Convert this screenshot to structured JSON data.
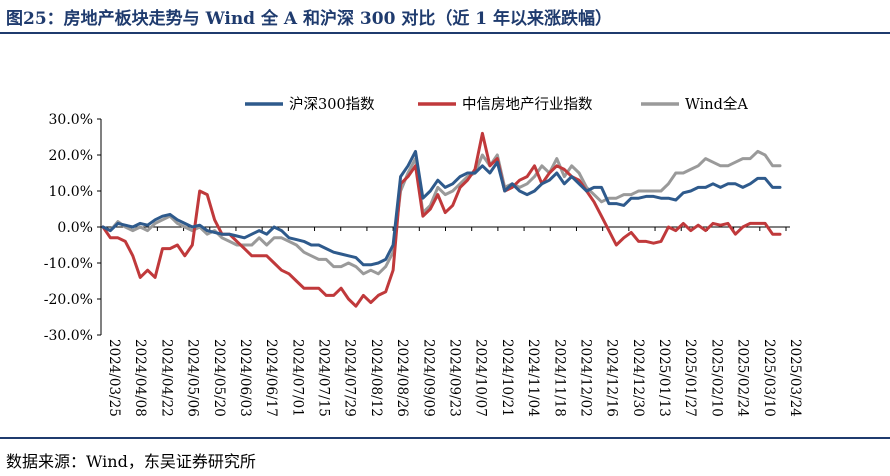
{
  "figure": {
    "title": "图25：房地产板块走势与 Wind 全 A 和沪深 300 对比（近 1 年以来涨跌幅）",
    "source": "数据来源：Wind，东吴证券研究所"
  },
  "chart_data": {
    "type": "line",
    "title": "",
    "xlabel": "",
    "ylabel": "",
    "ylim": [
      -30,
      30
    ],
    "yticks": [
      -30,
      -20,
      -10,
      0,
      10,
      20,
      30
    ],
    "ytick_labels": [
      "-30.0%",
      "-20.0%",
      "-10.0%",
      "0.0%",
      "10.0%",
      "20.0%",
      "30.0%"
    ],
    "x_tick_labels": [
      "2024/03/25",
      "2024/04/08",
      "2024/04/22",
      "2024/05/06",
      "2024/05/20",
      "2024/06/03",
      "2024/06/17",
      "2024/07/01",
      "2024/07/15",
      "2024/07/29",
      "2024/08/12",
      "2024/08/26",
      "2024/09/09",
      "2024/09/23",
      "2024/10/07",
      "2024/10/21",
      "2024/11/04",
      "2024/11/18",
      "2024/12/02",
      "2024/12/16",
      "2024/12/30",
      "2025/01/13",
      "2025/01/27",
      "2025/02/10",
      "2025/02/24",
      "2025/03/10",
      "2025/03/24"
    ],
    "legend_position": "top-center",
    "grid": false,
    "series": [
      {
        "name": "沪深300指数",
        "color": "#2e5a8c",
        "values": [
          0,
          -1,
          1,
          0.5,
          0,
          1,
          0.5,
          2,
          3,
          3.5,
          2,
          1,
          0,
          0.5,
          -1,
          -1.5,
          -2,
          -2,
          -2.5,
          -3,
          -2,
          -1,
          -2,
          0,
          -1,
          -3,
          -3.5,
          -4,
          -5,
          -5,
          -6,
          -7,
          -7.5,
          -8,
          -8.5,
          -10.5,
          -10.5,
          -10,
          -9,
          -5,
          14,
          17,
          21,
          8,
          10,
          13,
          11,
          12,
          14,
          15,
          15,
          17,
          15,
          18,
          10,
          12,
          10,
          9,
          10,
          12,
          13,
          15,
          12,
          14,
          12,
          10,
          11,
          11,
          6.5,
          6.5,
          6,
          8,
          8,
          8.5,
          8.5,
          8,
          8,
          7.5,
          9.5,
          10,
          11,
          11,
          12,
          11,
          12,
          12,
          11,
          12,
          13.5,
          13.5,
          11,
          11
        ]
      },
      {
        "name": "中信房地产行业指数",
        "color": "#c0393b",
        "values": [
          0,
          -3,
          -3,
          -4,
          -8,
          -14,
          -12,
          -14,
          -6,
          -6,
          -5,
          -8,
          -5,
          10,
          9,
          2,
          -2,
          -2,
          -4,
          -6,
          -8,
          -8,
          -8,
          -10,
          -12,
          -13,
          -15,
          -17,
          -17,
          -17,
          -19,
          -19,
          -17,
          -20,
          -22,
          -19,
          -21,
          -19,
          -18,
          -12,
          12,
          14,
          17,
          3,
          5,
          9,
          4,
          6,
          11,
          13,
          16,
          26,
          17,
          19,
          10,
          11,
          13,
          14,
          17,
          12,
          15,
          17,
          16,
          14,
          13,
          10,
          7,
          3,
          -1,
          -5,
          -3,
          -1.5,
          -4,
          -4,
          -4.5,
          -4,
          0,
          -1,
          1,
          -1,
          0.5,
          -1,
          1,
          0.5,
          1,
          -2,
          0,
          1,
          1,
          1,
          -2,
          -2
        ]
      },
      {
        "name": "Wind全A",
        "color": "#9a9a9a",
        "values": [
          0,
          -1,
          1.5,
          0,
          -1,
          0,
          -1,
          1,
          2,
          3,
          1,
          0,
          -1,
          0,
          -2,
          -1,
          -3,
          -4,
          -5,
          -5,
          -5,
          -3,
          -5,
          -3,
          -3,
          -4,
          -5,
          -7,
          -8,
          -9,
          -9,
          -11,
          -11,
          -10,
          -11,
          -13,
          -12,
          -13,
          -11,
          -7,
          10,
          15,
          19,
          4,
          6,
          11,
          9,
          10,
          12,
          14,
          15,
          20,
          17,
          20,
          11,
          12,
          11,
          12,
          14,
          17,
          15,
          19,
          14,
          17,
          15,
          11,
          9,
          7,
          8,
          8,
          9,
          9,
          10,
          10,
          10,
          10,
          12,
          15,
          15,
          16,
          17,
          19,
          18,
          17,
          17,
          18,
          19,
          19,
          21,
          20,
          17,
          17
        ]
      }
    ]
  }
}
